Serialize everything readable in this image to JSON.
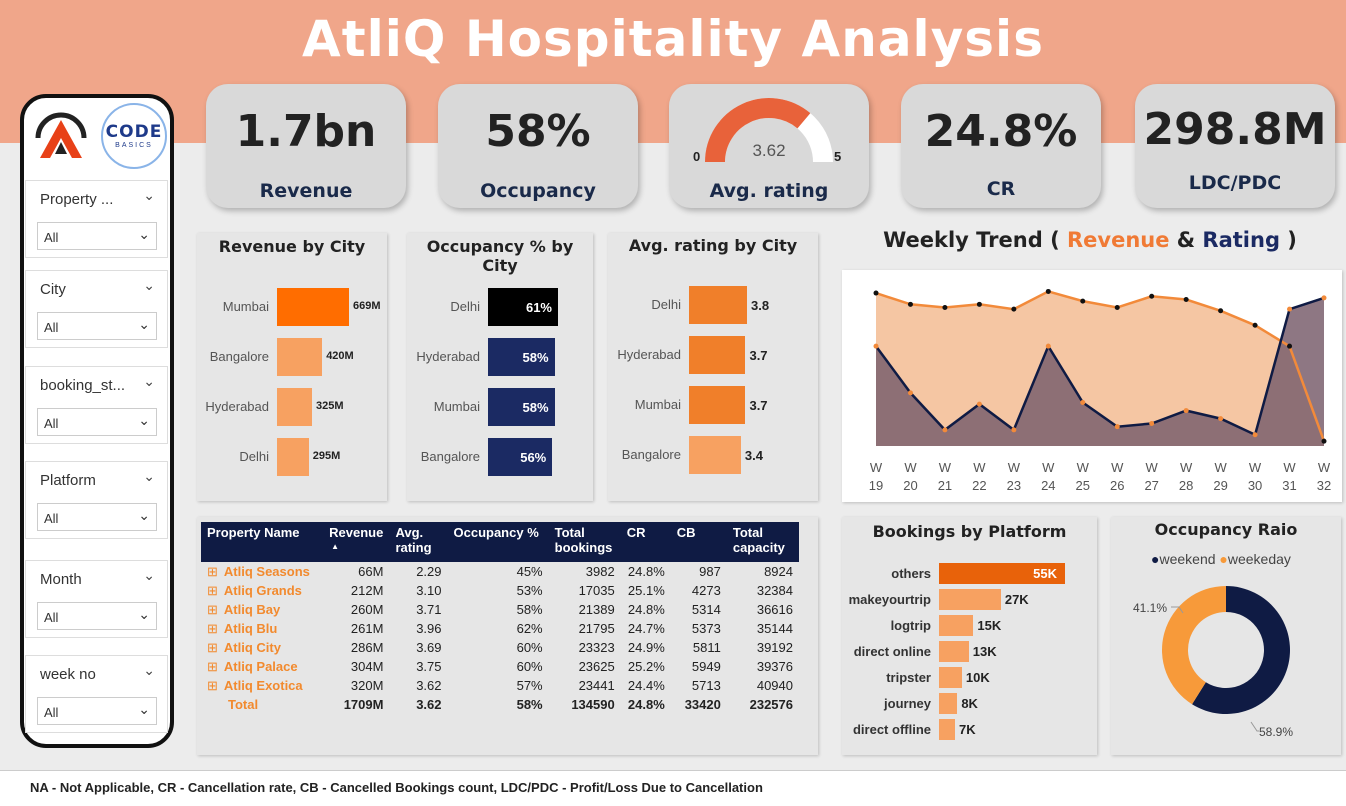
{
  "title": "AtliQ Hospitality Analysis",
  "logo_text": "CODE",
  "logo_sub": "BASICS",
  "slicers": [
    {
      "label": "Property ...",
      "value": "All"
    },
    {
      "label": "City",
      "value": "All"
    },
    {
      "label": "booking_st...",
      "value": "All"
    },
    {
      "label": "Platform",
      "value": "All"
    },
    {
      "label": "Month",
      "value": "All"
    },
    {
      "label": "week no",
      "value": "All"
    }
  ],
  "kpis": {
    "revenue": {
      "value": "1.7bn",
      "label": "Revenue"
    },
    "occupancy": {
      "value": "58%",
      "label": "Occupancy"
    },
    "rating": {
      "value": "3.62",
      "label": "Avg. rating",
      "min": "0",
      "max": "5",
      "fraction": 0.724
    },
    "cr": {
      "value": "24.8%",
      "label": "CR"
    },
    "ldc": {
      "value": "298.8M",
      "label": "LDC/PDC"
    }
  },
  "colors": {
    "orange": "#ff6d00",
    "light_orange": "#f7a161",
    "navy": "#1b2a63",
    "black": "#000000",
    "dark_orange": "#e8620a"
  },
  "chart_data": [
    {
      "type": "bar",
      "title": "Revenue by City",
      "categories": [
        "Mumbai",
        "Bangalore",
        "Hyderabad",
        "Delhi"
      ],
      "values": [
        669,
        420,
        325,
        295
      ],
      "labels": [
        "669M",
        "420M",
        "325M",
        "295M"
      ]
    },
    {
      "type": "bar",
      "title": "Occupancy % by City",
      "categories": [
        "Delhi",
        "Hyderabad",
        "Mumbai",
        "Bangalore"
      ],
      "values": [
        61,
        58,
        58,
        56
      ],
      "labels": [
        "61%",
        "58%",
        "58%",
        "56%"
      ]
    },
    {
      "type": "bar",
      "title": "Avg. rating by City",
      "categories": [
        "Delhi",
        "Hyderabad",
        "Mumbai",
        "Bangalore"
      ],
      "values": [
        3.8,
        3.7,
        3.7,
        3.4
      ],
      "labels": [
        "3.8",
        "3.7",
        "3.7",
        "3.4"
      ]
    },
    {
      "type": "area",
      "title_prefix": "Weekly Trend ( ",
      "title_rev": "Revenue",
      "title_amp": " & ",
      "title_rating": "Rating",
      "title_suffix": " )",
      "x": [
        "W 19",
        "W 20",
        "W 21",
        "W 22",
        "W 23",
        "W 24",
        "W 25",
        "W 26",
        "W 27",
        "W 28",
        "W 29",
        "W 30",
        "W 31",
        "W 32"
      ],
      "series": [
        {
          "values": [
            0.95,
            0.88,
            0.86,
            0.88,
            0.85,
            0.96,
            0.9,
            0.86,
            0.93,
            0.91,
            0.84,
            0.75,
            0.62,
            0.03
          ]
        },
        {
          "values": [
            0.62,
            0.33,
            0.1,
            0.26,
            0.1,
            0.62,
            0.27,
            0.12,
            0.14,
            0.22,
            0.17,
            0.07,
            0.85,
            0.92
          ]
        }
      ]
    },
    {
      "type": "bar",
      "title": "Bookings by Platform",
      "categories": [
        "others",
        "makeyourtrip",
        "logtrip",
        "direct online",
        "tripster",
        "journey",
        "direct offline"
      ],
      "values": [
        55,
        27,
        15,
        13,
        10,
        8,
        7
      ],
      "labels": [
        "55K",
        "27K",
        "15K",
        "13K",
        "10K",
        "8K",
        "7K"
      ]
    },
    {
      "type": "pie",
      "title": "Occupancy Raio",
      "legend": [
        "weekend",
        "weekeday"
      ],
      "values": [
        58.9,
        41.1
      ],
      "labels": [
        "58.9%",
        "41.1%"
      ]
    }
  ],
  "table": {
    "headers": [
      "Property Name",
      "Revenue",
      "Avg. rating",
      "Occupancy %",
      "Total bookings",
      "CR",
      "CB",
      "Total capacity"
    ],
    "rows": [
      [
        "Atliq Seasons",
        "66M",
        "2.29",
        "45%",
        "3982",
        "24.8%",
        "987",
        "8924"
      ],
      [
        "Atliq Grands",
        "212M",
        "3.10",
        "53%",
        "17035",
        "25.1%",
        "4273",
        "32384"
      ],
      [
        "Atliq Bay",
        "260M",
        "3.71",
        "58%",
        "21389",
        "24.8%",
        "5314",
        "36616"
      ],
      [
        "Atliq Blu",
        "261M",
        "3.96",
        "62%",
        "21795",
        "24.7%",
        "5373",
        "35144"
      ],
      [
        "Atliq City",
        "286M",
        "3.69",
        "60%",
        "23323",
        "24.9%",
        "5811",
        "39192"
      ],
      [
        "Atliq Palace",
        "304M",
        "3.75",
        "60%",
        "23625",
        "25.2%",
        "5949",
        "39376"
      ],
      [
        "Atliq Exotica",
        "320M",
        "3.62",
        "57%",
        "23441",
        "24.4%",
        "5713",
        "40940"
      ]
    ],
    "total": [
      "Total",
      "1709M",
      "3.62",
      "58%",
      "134590",
      "24.8%",
      "33420",
      "232576"
    ]
  },
  "footer": "NA - Not Applicable, CR - Cancellation rate, CB - Cancelled Bookings count, LDC/PDC - Profit/Loss Due to Cancellation"
}
